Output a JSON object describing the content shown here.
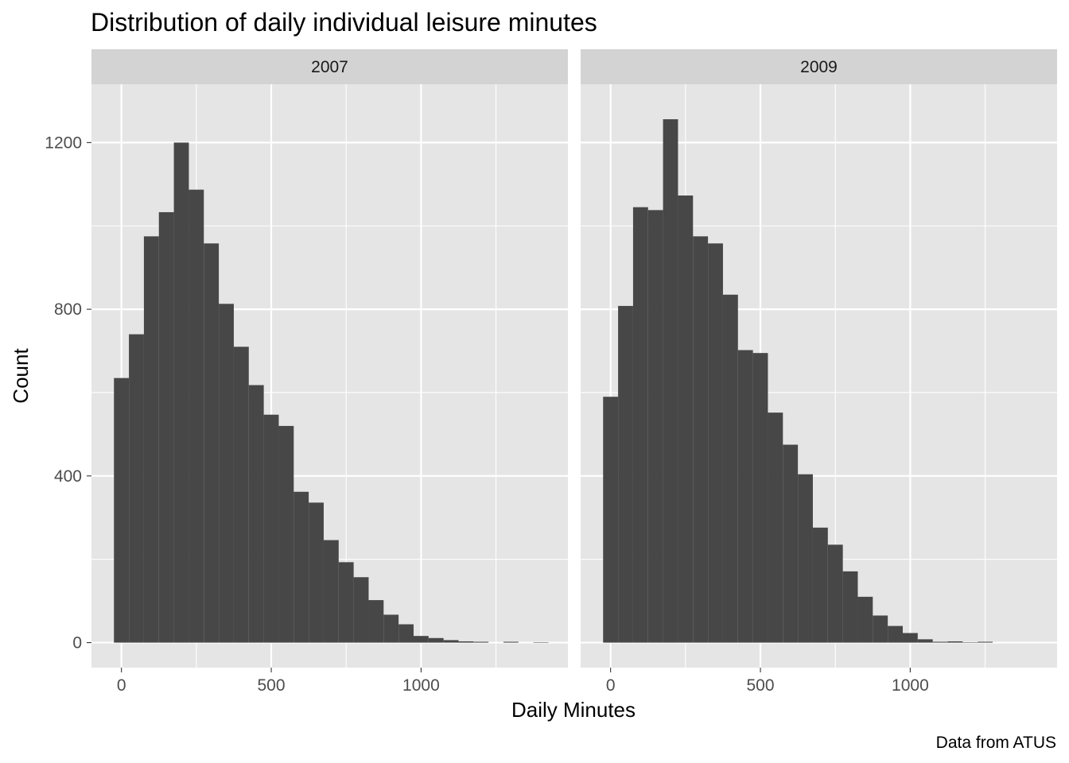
{
  "chart_data": {
    "type": "bar",
    "title": "Distribution of daily individual leisure minutes",
    "xlabel": "Daily Minutes",
    "ylabel": "Count",
    "caption": "Data from ATUS",
    "xlim": [
      -100,
      1490
    ],
    "ylim": [
      -60,
      1340
    ],
    "x_ticks": [
      0,
      500,
      1000
    ],
    "x_tick_labels": [
      "0",
      "500",
      "1000"
    ],
    "y_ticks": [
      0,
      400,
      800,
      1200
    ],
    "y_tick_labels": [
      "0",
      "400",
      "800",
      "1200"
    ],
    "bin_width": 50,
    "grid": true,
    "facets": [
      {
        "label": "2007",
        "bins": [
          {
            "x0": -25,
            "x1": 25,
            "count": 635
          },
          {
            "x0": 25,
            "x1": 75,
            "count": 740
          },
          {
            "x0": 75,
            "x1": 125,
            "count": 975
          },
          {
            "x0": 125,
            "x1": 175,
            "count": 1033
          },
          {
            "x0": 175,
            "x1": 225,
            "count": 1200
          },
          {
            "x0": 225,
            "x1": 275,
            "count": 1087
          },
          {
            "x0": 275,
            "x1": 325,
            "count": 958
          },
          {
            "x0": 325,
            "x1": 375,
            "count": 813
          },
          {
            "x0": 375,
            "x1": 425,
            "count": 710
          },
          {
            "x0": 425,
            "x1": 475,
            "count": 618
          },
          {
            "x0": 475,
            "x1": 525,
            "count": 547
          },
          {
            "x0": 525,
            "x1": 575,
            "count": 520
          },
          {
            "x0": 575,
            "x1": 625,
            "count": 362
          },
          {
            "x0": 625,
            "x1": 675,
            "count": 336
          },
          {
            "x0": 675,
            "x1": 725,
            "count": 246
          },
          {
            "x0": 725,
            "x1": 775,
            "count": 193
          },
          {
            "x0": 775,
            "x1": 825,
            "count": 157
          },
          {
            "x0": 825,
            "x1": 875,
            "count": 102
          },
          {
            "x0": 875,
            "x1": 925,
            "count": 67
          },
          {
            "x0": 925,
            "x1": 975,
            "count": 44
          },
          {
            "x0": 975,
            "x1": 1025,
            "count": 16
          },
          {
            "x0": 1025,
            "x1": 1075,
            "count": 11
          },
          {
            "x0": 1075,
            "x1": 1125,
            "count": 6
          },
          {
            "x0": 1125,
            "x1": 1175,
            "count": 3
          },
          {
            "x0": 1175,
            "x1": 1225,
            "count": 2
          },
          {
            "x0": 1225,
            "x1": 1275,
            "count": 0
          },
          {
            "x0": 1275,
            "x1": 1325,
            "count": 2
          },
          {
            "x0": 1325,
            "x1": 1375,
            "count": 0
          },
          {
            "x0": 1375,
            "x1": 1425,
            "count": 1
          }
        ]
      },
      {
        "label": "2009",
        "bins": [
          {
            "x0": -25,
            "x1": 25,
            "count": 590
          },
          {
            "x0": 25,
            "x1": 75,
            "count": 808
          },
          {
            "x0": 75,
            "x1": 125,
            "count": 1045
          },
          {
            "x0": 125,
            "x1": 175,
            "count": 1038
          },
          {
            "x0": 175,
            "x1": 225,
            "count": 1256
          },
          {
            "x0": 225,
            "x1": 275,
            "count": 1073
          },
          {
            "x0": 275,
            "x1": 325,
            "count": 975
          },
          {
            "x0": 325,
            "x1": 375,
            "count": 958
          },
          {
            "x0": 375,
            "x1": 425,
            "count": 835
          },
          {
            "x0": 425,
            "x1": 475,
            "count": 702
          },
          {
            "x0": 475,
            "x1": 525,
            "count": 695
          },
          {
            "x0": 525,
            "x1": 575,
            "count": 552
          },
          {
            "x0": 575,
            "x1": 625,
            "count": 475
          },
          {
            "x0": 625,
            "x1": 675,
            "count": 404
          },
          {
            "x0": 675,
            "x1": 725,
            "count": 276
          },
          {
            "x0": 725,
            "x1": 775,
            "count": 235
          },
          {
            "x0": 775,
            "x1": 825,
            "count": 171
          },
          {
            "x0": 825,
            "x1": 875,
            "count": 110
          },
          {
            "x0": 875,
            "x1": 925,
            "count": 65
          },
          {
            "x0": 925,
            "x1": 975,
            "count": 40
          },
          {
            "x0": 975,
            "x1": 1025,
            "count": 23
          },
          {
            "x0": 1025,
            "x1": 1075,
            "count": 8
          },
          {
            "x0": 1075,
            "x1": 1125,
            "count": 2
          },
          {
            "x0": 1125,
            "x1": 1175,
            "count": 3
          },
          {
            "x0": 1175,
            "x1": 1225,
            "count": 1
          },
          {
            "x0": 1225,
            "x1": 1275,
            "count": 2
          }
        ]
      }
    ],
    "colors": {
      "bar": "#474747",
      "panel_background": "#e5e5e5",
      "strip_background": "#d3d3d3",
      "grid": "#ffffff"
    }
  }
}
